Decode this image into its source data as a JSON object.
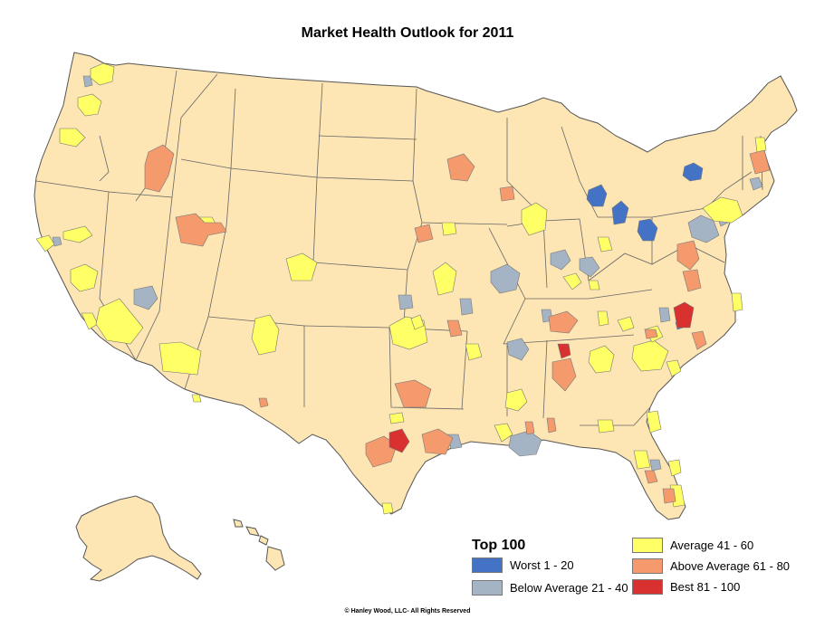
{
  "title": "Market Health Outlook for 2011",
  "legend": {
    "heading": "Top 100",
    "items": [
      {
        "label": "Worst 1 - 20",
        "color": "#4472c4"
      },
      {
        "label": "Below Average 21 - 40",
        "color": "#a4b4c4"
      },
      {
        "label": "Average 41 - 60",
        "color": "#ffff66"
      },
      {
        "label": "Above Average 61 - 80",
        "color": "#f49a6c"
      },
      {
        "label": "Best 81 - 100",
        "color": "#d93030"
      }
    ]
  },
  "colors": {
    "land": "#fde5b4",
    "border": "#555555",
    "background": "#ffffff"
  },
  "copyright": "© Hanley Wood, LLC- All Rights Reserved"
}
